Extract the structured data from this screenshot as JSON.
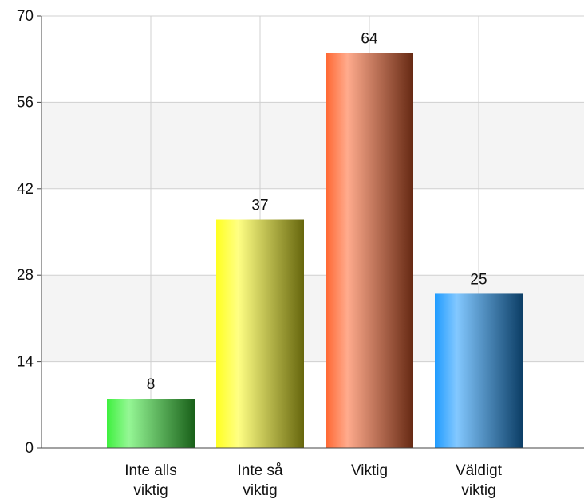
{
  "chart_data": {
    "type": "bar",
    "categories": [
      "Inte alls viktig",
      "Inte så viktig",
      "Viktig",
      "Väldigt viktig"
    ],
    "values": [
      8,
      37,
      64,
      25
    ],
    "colors": [
      "#3ef03e",
      "#ffff20",
      "#ff6630",
      "#1e9bff"
    ],
    "ylim": [
      0,
      70
    ],
    "yticks": [
      0,
      14,
      28,
      42,
      56,
      70
    ],
    "grid": true
  }
}
